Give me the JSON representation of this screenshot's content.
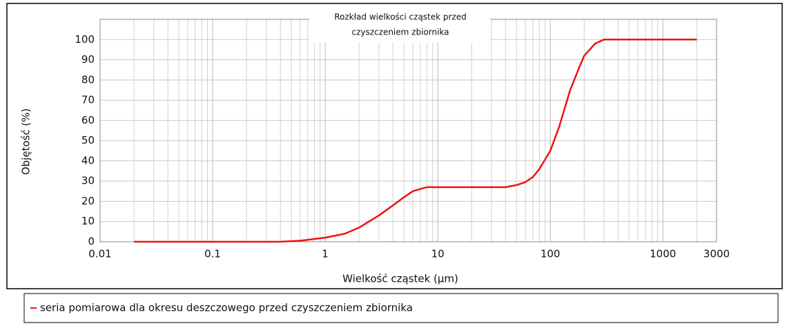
{
  "chart_data": {
    "type": "line",
    "title": [
      "Rozkład wielkości cząstek przed",
      "czyszczeniem zbiornika"
    ],
    "x_label": "Wielkość cząstek (µm)",
    "y_label": "Objętość (%)",
    "x": [
      0.02,
      0.1,
      0.4,
      0.6,
      1,
      1.5,
      2,
      3,
      4,
      5,
      6,
      8,
      10,
      20,
      40,
      50,
      60,
      70,
      80,
      100,
      120,
      150,
      180,
      200,
      250,
      300,
      400,
      1000,
      2000
    ],
    "series": [
      {
        "name": "seria pomiarowa dla okresu deszczowego przed czyszczeniem zbiornika",
        "color": "#ee1111",
        "values": [
          0,
          0,
          0,
          0.5,
          2,
          4,
          7,
          13,
          18,
          22,
          25,
          27,
          27,
          27,
          27,
          28,
          29.5,
          32,
          36,
          45,
          57,
          75,
          86,
          92,
          98,
          100,
          100,
          100,
          100
        ]
      }
    ],
    "log_x": true,
    "xlim": [
      0.01,
      3000
    ],
    "xticks": [
      0.01,
      0.1,
      1,
      10,
      100,
      1000,
      3000
    ],
    "ylim": [
      0,
      110
    ],
    "yticks": [
      0,
      10,
      20,
      30,
      40,
      50,
      60,
      70,
      80,
      90,
      100
    ],
    "grid": true
  }
}
